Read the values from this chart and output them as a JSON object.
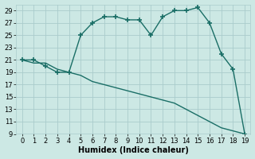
{
  "xlabel": "Humidex (Indice chaleur)",
  "background_color": "#cce8e4",
  "grid_color": "#aacccc",
  "line_color": "#1a6e66",
  "x_data": [
    0,
    1,
    2,
    3,
    4,
    5,
    6,
    7,
    8,
    9,
    10,
    11,
    12,
    13,
    14,
    15,
    16,
    17,
    18,
    19
  ],
  "y1_data": [
    21,
    21,
    20,
    19,
    19,
    25,
    27,
    28,
    28,
    27.5,
    27.5,
    25,
    28,
    29,
    29,
    29.5,
    27,
    22,
    19.5,
    9
  ],
  "y2_data": [
    21,
    20.5,
    20.5,
    19.5,
    19,
    18.5,
    17.5,
    17,
    16.5,
    16,
    15.5,
    15,
    14.5,
    14,
    13,
    12,
    11,
    10,
    9.5,
    9
  ],
  "ylim": [
    9,
    30
  ],
  "xlim": [
    -0.5,
    19.5
  ],
  "yticks": [
    9,
    11,
    13,
    15,
    17,
    19,
    21,
    23,
    25,
    27,
    29
  ],
  "xticks": [
    0,
    1,
    2,
    3,
    4,
    5,
    6,
    7,
    8,
    9,
    10,
    11,
    12,
    13,
    14,
    15,
    16,
    17,
    18,
    19
  ],
  "marker": "+",
  "markersize": 4,
  "markeredgewidth": 1.2,
  "linewidth": 1.0,
  "font_size": 6,
  "xlabel_fontsize": 7
}
